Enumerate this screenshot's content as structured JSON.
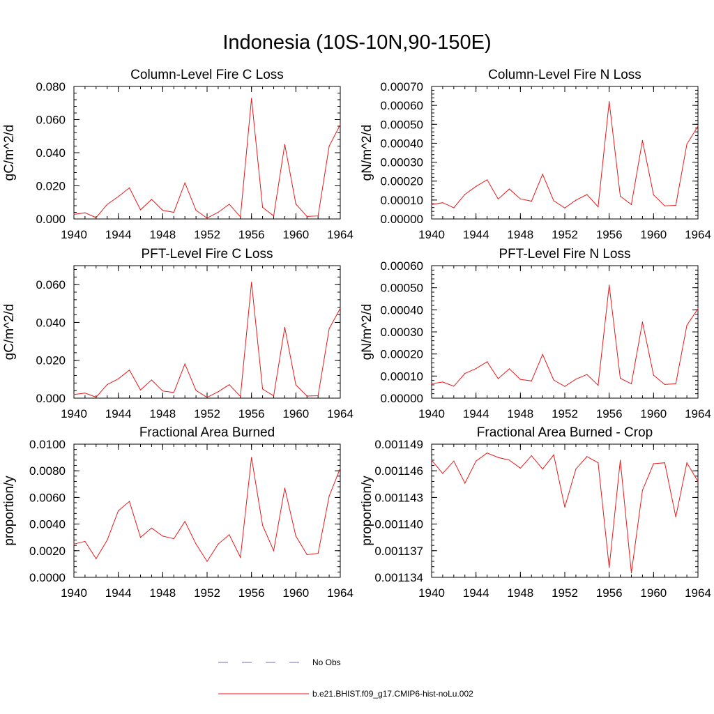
{
  "title": "Indonesia (10S-10N,90-150E)",
  "legend": [
    {
      "label": "No Obs",
      "color": "#6f6fb8",
      "dash": true
    },
    {
      "label": "b.e21.BHIST.f09_g17.CMIP6-hist-noLu.002",
      "color": "#e8191b",
      "dash": false
    }
  ],
  "chart_data": [
    {
      "type": "line",
      "title": "Column-Level Fire C Loss",
      "xlabel": "",
      "ylabel": "gC/m^2/d",
      "xlim": [
        1940,
        1964
      ],
      "ylim": [
        0,
        0.08
      ],
      "xticks": [
        "1940",
        "1944",
        "1948",
        "1952",
        "1956",
        "1960",
        "1964"
      ],
      "yticks": [
        "0.000",
        "0.020",
        "0.040",
        "0.060",
        "0.080"
      ],
      "x": [
        1940,
        1941,
        1942,
        1943,
        1944,
        1945,
        1946,
        1947,
        1948,
        1949,
        1950,
        1951,
        1952,
        1953,
        1954,
        1955,
        1956,
        1957,
        1958,
        1959,
        1960,
        1961,
        1962,
        1963,
        1964
      ],
      "series": [
        {
          "color": "#e8191b",
          "values": [
            0.0028,
            0.0037,
            0.0008,
            0.0088,
            0.0135,
            0.0188,
            0.0055,
            0.0118,
            0.0052,
            0.004,
            0.0218,
            0.0052,
            0.0005,
            0.004,
            0.0089,
            0.0012,
            0.0728,
            0.007,
            0.0018,
            0.045,
            0.009,
            0.0015,
            0.0018,
            0.044,
            0.057
          ]
        }
      ]
    },
    {
      "type": "line",
      "title": "Column-Level Fire N Loss",
      "xlabel": "",
      "ylabel": "gN/m^2/d",
      "xlim": [
        1940,
        1964
      ],
      "ylim": [
        0,
        0.0007
      ],
      "xticks": [
        "1940",
        "1944",
        "1948",
        "1952",
        "1956",
        "1960",
        "1964"
      ],
      "yticks": [
        "0.00000",
        "0.00010",
        "0.00020",
        "0.00030",
        "0.00040",
        "0.00050",
        "0.00060",
        "0.00070"
      ],
      "x": [
        1940,
        1941,
        1942,
        1943,
        1944,
        1945,
        1946,
        1947,
        1948,
        1949,
        1950,
        1951,
        1952,
        1953,
        1954,
        1955,
        1956,
        1957,
        1958,
        1959,
        1960,
        1961,
        1962,
        1963,
        1964
      ],
      "series": [
        {
          "color": "#e8191b",
          "values": [
            7.6e-05,
            8.6e-05,
            5.9e-05,
            0.00013,
            0.000172,
            0.000207,
            0.000105,
            0.000158,
            0.000106,
            9.4e-05,
            0.000236,
            9.6e-05,
            5.8e-05,
            9.9e-05,
            0.000129,
            6.4e-05,
            0.00062,
            0.00012,
            7.6e-05,
            0.000415,
            0.000127,
            6.9e-05,
            7.2e-05,
            0.000395,
            0.00049
          ]
        }
      ]
    },
    {
      "type": "line",
      "title": "PFT-Level Fire C Loss",
      "xlabel": "",
      "ylabel": "gC/m^2/d",
      "xlim": [
        1940,
        1964
      ],
      "ylim": [
        0,
        0.07
      ],
      "xticks": [
        "1940",
        "1944",
        "1948",
        "1952",
        "1956",
        "1960",
        "1964"
      ],
      "yticks": [
        "0.000",
        "0.020",
        "0.040",
        "0.060"
      ],
      "x": [
        1940,
        1941,
        1942,
        1943,
        1944,
        1945,
        1946,
        1947,
        1948,
        1949,
        1950,
        1951,
        1952,
        1953,
        1954,
        1955,
        1956,
        1957,
        1958,
        1959,
        1960,
        1961,
        1962,
        1963,
        1964
      ],
      "series": [
        {
          "color": "#e8191b",
          "values": [
            0.0019,
            0.0027,
            0.0005,
            0.0072,
            0.0102,
            0.0148,
            0.0043,
            0.0096,
            0.0038,
            0.003,
            0.0181,
            0.0041,
            0.0004,
            0.0034,
            0.0071,
            0.0009,
            0.0612,
            0.0048,
            0.0012,
            0.0374,
            0.007,
            0.0011,
            0.0013,
            0.0367,
            0.0475
          ]
        }
      ]
    },
    {
      "type": "line",
      "title": "PFT-Level Fire N Loss",
      "xlabel": "",
      "ylabel": "gN/m^2/d",
      "xlim": [
        1940,
        1964
      ],
      "ylim": [
        0,
        0.0006
      ],
      "xticks": [
        "1940",
        "1944",
        "1948",
        "1952",
        "1956",
        "1960",
        "1964"
      ],
      "yticks": [
        "0.00000",
        "0.00010",
        "0.00020",
        "0.00030",
        "0.00040",
        "0.00050",
        "0.00060"
      ],
      "x": [
        1940,
        1941,
        1942,
        1943,
        1944,
        1945,
        1946,
        1947,
        1948,
        1949,
        1950,
        1951,
        1952,
        1953,
        1954,
        1955,
        1956,
        1957,
        1958,
        1959,
        1960,
        1961,
        1962,
        1963,
        1964
      ],
      "series": [
        {
          "color": "#e8191b",
          "values": [
            6.5e-05,
            7.3e-05,
            5.4e-05,
            0.000112,
            0.000134,
            0.000165,
            8.8e-05,
            0.000133,
            8.5e-05,
            7.8e-05,
            0.000198,
            8.2e-05,
            5.3e-05,
            8.6e-05,
            0.000107,
            5.8e-05,
            0.000512,
            9e-05,
            6.5e-05,
            0.000345,
            0.000104,
            6.2e-05,
            6.5e-05,
            0.00033,
            0.000405
          ]
        }
      ]
    },
    {
      "type": "line",
      "title": "Fractional Area Burned",
      "xlabel": "",
      "ylabel": "proportion/y",
      "xlim": [
        1940,
        1964
      ],
      "ylim": [
        0,
        0.01
      ],
      "xticks": [
        "1940",
        "1944",
        "1948",
        "1952",
        "1956",
        "1960",
        "1964"
      ],
      "yticks": [
        "0.0000",
        "0.0020",
        "0.0040",
        "0.0060",
        "0.0080",
        "0.0100"
      ],
      "x": [
        1940,
        1941,
        1942,
        1943,
        1944,
        1945,
        1946,
        1947,
        1948,
        1949,
        1950,
        1951,
        1952,
        1953,
        1954,
        1955,
        1956,
        1957,
        1958,
        1959,
        1960,
        1961,
        1962,
        1963,
        1964
      ],
      "series": [
        {
          "color": "#e8191b",
          "values": [
            0.0025,
            0.0027,
            0.0014,
            0.0028,
            0.005,
            0.0057,
            0.003,
            0.0037,
            0.0031,
            0.0029,
            0.0042,
            0.0025,
            0.0012,
            0.0025,
            0.0032,
            0.0015,
            0.009,
            0.0039,
            0.002,
            0.0067,
            0.0031,
            0.0017,
            0.0018,
            0.0061,
            0.0082
          ]
        }
      ]
    },
    {
      "type": "line",
      "title": "Fractional Area Burned - Crop",
      "xlabel": "",
      "ylabel": "proportion/y",
      "xlim": [
        1940,
        1964
      ],
      "ylim": [
        0.001134,
        0.001149
      ],
      "xticks": [
        "1940",
        "1944",
        "1948",
        "1952",
        "1956",
        "1960",
        "1964"
      ],
      "yticks": [
        "0.001134",
        "0.001137",
        "0.001140",
        "0.001143",
        "0.001146",
        "0.001149"
      ],
      "x": [
        1940,
        1941,
        1942,
        1943,
        1944,
        1945,
        1946,
        1947,
        1948,
        1949,
        1950,
        1951,
        1952,
        1953,
        1954,
        1955,
        1956,
        1957,
        1958,
        1959,
        1960,
        1961,
        1962,
        1963,
        1964
      ],
      "series": [
        {
          "color": "#e8191b",
          "values": [
            0.0011472,
            0.0011457,
            0.0011471,
            0.0011446,
            0.0011471,
            0.001148,
            0.0011475,
            0.0011472,
            0.0011463,
            0.0011477,
            0.0011462,
            0.0011478,
            0.0011419,
            0.0011462,
            0.0011476,
            0.0011469,
            0.0011351,
            0.0011472,
            0.0011345,
            0.0011438,
            0.0011468,
            0.0011469,
            0.0011408,
            0.0011469,
            0.0011448
          ]
        }
      ]
    }
  ]
}
